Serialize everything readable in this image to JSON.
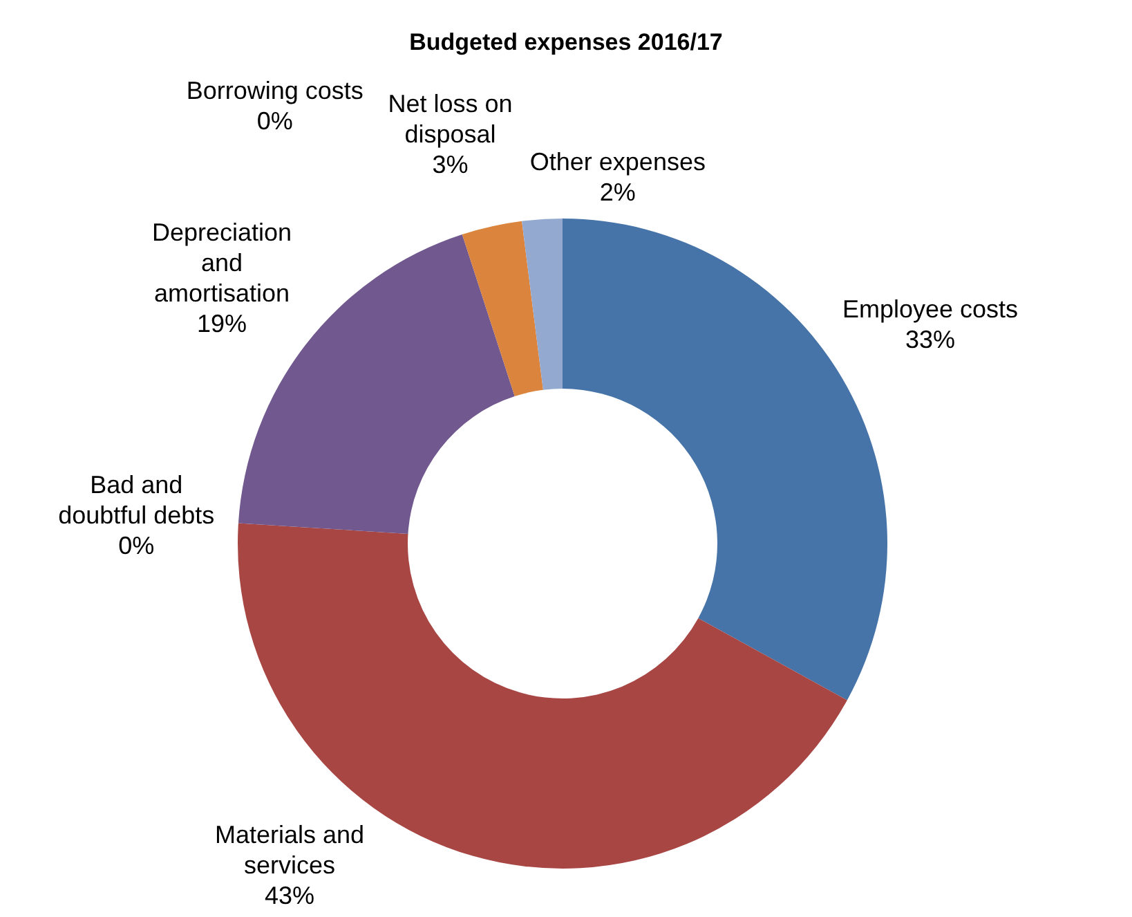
{
  "chart_data": {
    "type": "donut",
    "title": "Budgeted expenses 2016/17",
    "categories": [
      "Employee costs",
      "Materials and services",
      "Bad and doubtful debts",
      "Depreciation and amortisation",
      "Borrowing costs",
      "Net loss on disposal",
      "Other expenses"
    ],
    "values": [
      33,
      43,
      0,
      19,
      0,
      3,
      2
    ],
    "value_labels": [
      "33%",
      "43%",
      "0%",
      "19%",
      "0%",
      "3%",
      "2%"
    ],
    "colors": [
      "#4674a8",
      "#a84644",
      "#89a54e",
      "#71588f",
      "#4198af",
      "#db843d",
      "#93a9cf"
    ],
    "legend": false
  }
}
